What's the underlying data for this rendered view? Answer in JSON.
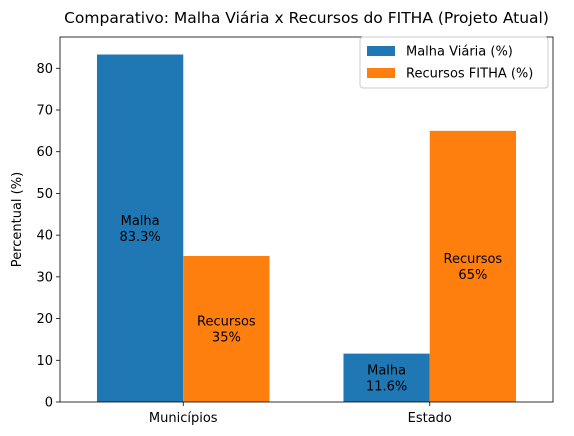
{
  "chart_data": {
    "type": "bar",
    "title": "Comparativo: Malha Viária x Recursos do FITHA (Projeto Atual)",
    "xlabel": "",
    "ylabel": "Percentual (%)",
    "categories": [
      "Municípios",
      "Estado"
    ],
    "series": [
      {
        "name": "Malha Viária (%)",
        "color": "#1f77b4",
        "values": [
          83.3,
          11.6
        ],
        "labels": [
          [
            "Malha",
            "83.3%"
          ],
          [
            "Malha",
            "11.6%"
          ]
        ]
      },
      {
        "name": "Recursos FITHA (%)",
        "color": "#ff7f0e",
        "values": [
          35,
          65
        ],
        "labels": [
          [
            "Recursos",
            "35%"
          ],
          [
            "Recursos",
            "65%"
          ]
        ]
      }
    ],
    "ylim": [
      0,
      87.5
    ],
    "yticks": [
      0,
      10,
      20,
      30,
      40,
      50,
      60,
      70,
      80
    ],
    "grid": false,
    "legend_position": "top-right"
  }
}
